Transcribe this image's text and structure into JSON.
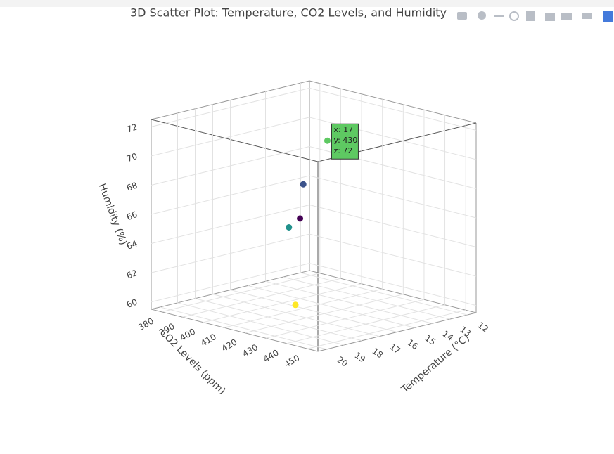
{
  "chart_data": {
    "type": "scatter3d",
    "title": "3D Scatter Plot: Temperature, CO2 Levels, and Humidity",
    "x_label": "Temperature (°C)",
    "y_label": "CO2 Levels (ppm)",
    "z_label": "Humidity (%)",
    "x": [
      15,
      16,
      18,
      17,
      20
    ],
    "y": [
      400,
      410,
      420,
      430,
      440
    ],
    "z": [
      65,
      68,
      66,
      72,
      62
    ],
    "colors": [
      "#440154",
      "#3b528b",
      "#21918c",
      "#5ec962",
      "#fde725"
    ],
    "xlim": [
      11.5,
      20.5
    ],
    "xticks": [
      12,
      13,
      14,
      15,
      16,
      17,
      18,
      19,
      20
    ],
    "ylim": [
      375,
      455
    ],
    "yticks": [
      380,
      390,
      400,
      410,
      420,
      430,
      440,
      450
    ],
    "zlim": [
      59.5,
      72.5
    ],
    "zticks": [
      60,
      62,
      64,
      66,
      68,
      70,
      72
    ],
    "grid": true,
    "hover": {
      "point": 3,
      "lines": [
        "x: 17",
        "y: 430",
        "z: 72"
      ]
    }
  }
}
